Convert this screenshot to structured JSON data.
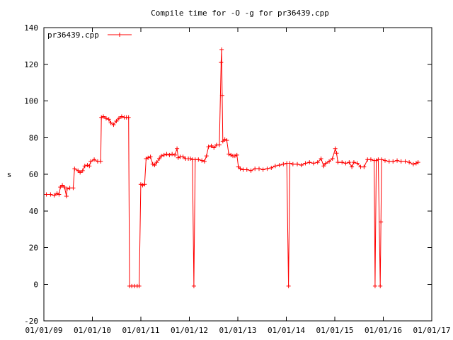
{
  "chart_data": {
    "type": "line",
    "title": "Compile time for -O -g for pr36439.cpp",
    "xlabel": "",
    "ylabel": "s",
    "xlim": [
      "2009-01-01",
      "2017-01-01"
    ],
    "ylim": [
      -20,
      140
    ],
    "yticks": [
      -20,
      0,
      20,
      40,
      60,
      80,
      100,
      120,
      140
    ],
    "xticks": [
      "01/01/09",
      "01/01/10",
      "01/01/11",
      "01/01/12",
      "01/01/13",
      "01/01/14",
      "01/01/15",
      "01/01/16",
      "01/01/17"
    ],
    "grid": false,
    "legend_position": "top-left",
    "series_color": "#ff0000",
    "series": [
      {
        "name": "pr36439.cpp",
        "points": [
          [
            "2009-01-20",
            49
          ],
          [
            "2009-02-20",
            49
          ],
          [
            "2009-03-20",
            48.5
          ],
          [
            "2009-04-10",
            49.5
          ],
          [
            "2009-04-25",
            49
          ],
          [
            "2009-05-05",
            53
          ],
          [
            "2009-05-20",
            54
          ],
          [
            "2009-06-05",
            53
          ],
          [
            "2009-06-20",
            48
          ],
          [
            "2009-06-25",
            52
          ],
          [
            "2009-07-15",
            52.5
          ],
          [
            "2009-08-10",
            52.5
          ],
          [
            "2009-08-20",
            63
          ],
          [
            "2009-09-15",
            62
          ],
          [
            "2009-10-01",
            61
          ],
          [
            "2009-10-20",
            62
          ],
          [
            "2009-11-05",
            64.5
          ],
          [
            "2009-11-25",
            65
          ],
          [
            "2009-12-10",
            64.5
          ],
          [
            "2009-12-20",
            67
          ],
          [
            "2010-01-15",
            68
          ],
          [
            "2010-02-10",
            67
          ],
          [
            "2010-03-05",
            67
          ],
          [
            "2010-03-10",
            91
          ],
          [
            "2010-03-25",
            91.5
          ],
          [
            "2010-04-15",
            90.5
          ],
          [
            "2010-05-05",
            90
          ],
          [
            "2010-05-20",
            88
          ],
          [
            "2010-06-10",
            87
          ],
          [
            "2010-07-01",
            89
          ],
          [
            "2010-07-20",
            90.5
          ],
          [
            "2010-08-10",
            91.5
          ],
          [
            "2010-08-30",
            91
          ],
          [
            "2010-09-15",
            91
          ],
          [
            "2010-10-01",
            91
          ],
          [
            "2010-10-08",
            -1
          ],
          [
            "2010-10-25",
            -1
          ],
          [
            "2010-11-15",
            -1
          ],
          [
            "2010-12-05",
            -1
          ],
          [
            "2010-12-20",
            -1
          ],
          [
            "2011-01-01",
            54.5
          ],
          [
            "2011-01-15",
            54
          ],
          [
            "2011-01-30",
            54.5
          ],
          [
            "2011-02-10",
            68.5
          ],
          [
            "2011-02-25",
            69
          ],
          [
            "2011-03-15",
            69.5
          ],
          [
            "2011-04-01",
            65.5
          ],
          [
            "2011-04-15",
            65
          ],
          [
            "2011-05-01",
            66.5
          ],
          [
            "2011-05-20",
            68.5
          ],
          [
            "2011-06-05",
            70
          ],
          [
            "2011-06-25",
            70.5
          ],
          [
            "2011-07-15",
            71
          ],
          [
            "2011-08-05",
            70.5
          ],
          [
            "2011-08-25",
            71
          ],
          [
            "2011-09-15",
            70.5
          ],
          [
            "2011-10-01",
            74
          ],
          [
            "2011-10-10",
            69
          ],
          [
            "2011-10-25",
            69.5
          ],
          [
            "2011-11-15",
            69.5
          ],
          [
            "2011-12-05",
            68.5
          ],
          [
            "2011-12-25",
            68.5
          ],
          [
            "2012-01-10",
            68.5
          ],
          [
            "2012-01-25",
            68
          ],
          [
            "2012-02-05",
            -1
          ],
          [
            "2012-02-15",
            68
          ],
          [
            "2012-03-10",
            68
          ],
          [
            "2012-04-05",
            67.5
          ],
          [
            "2012-04-25",
            67
          ],
          [
            "2012-05-10",
            70
          ],
          [
            "2012-05-25",
            75
          ],
          [
            "2012-06-15",
            75.5
          ],
          [
            "2012-07-05",
            74.5
          ],
          [
            "2012-07-25",
            76
          ],
          [
            "2012-08-15",
            76
          ],
          [
            "2012-08-28",
            121
          ],
          [
            "2012-09-01",
            128
          ],
          [
            "2012-09-05",
            103
          ],
          [
            "2012-09-10",
            78
          ],
          [
            "2012-09-25",
            79
          ],
          [
            "2012-10-10",
            78.5
          ],
          [
            "2012-10-25",
            71
          ],
          [
            "2012-11-10",
            70.5
          ],
          [
            "2012-11-25",
            70
          ],
          [
            "2012-12-10",
            70
          ],
          [
            "2012-12-25",
            70.5
          ],
          [
            "2013-01-05",
            64
          ],
          [
            "2013-01-20",
            63
          ],
          [
            "2013-02-10",
            62.5
          ],
          [
            "2013-03-10",
            62.5
          ],
          [
            "2013-04-10",
            62
          ],
          [
            "2013-05-10",
            63
          ],
          [
            "2013-06-10",
            63
          ],
          [
            "2013-07-10",
            62.5
          ],
          [
            "2013-08-10",
            63
          ],
          [
            "2013-09-10",
            63.5
          ],
          [
            "2013-10-10",
            64.5
          ],
          [
            "2013-11-10",
            65
          ],
          [
            "2013-12-10",
            65.5
          ],
          [
            "2014-01-05",
            66
          ],
          [
            "2014-01-18",
            -1
          ],
          [
            "2014-01-28",
            66
          ],
          [
            "2014-02-20",
            65.5
          ],
          [
            "2014-03-25",
            65.5
          ],
          [
            "2014-04-25",
            65
          ],
          [
            "2014-05-25",
            66
          ],
          [
            "2014-06-25",
            66.5
          ],
          [
            "2014-07-25",
            66
          ],
          [
            "2014-08-25",
            66.5
          ],
          [
            "2014-09-20",
            68.5
          ],
          [
            "2014-10-10",
            64.5
          ],
          [
            "2014-10-25",
            66
          ],
          [
            "2014-11-20",
            67
          ],
          [
            "2014-12-15",
            68.5
          ],
          [
            "2015-01-05",
            74
          ],
          [
            "2015-01-15",
            71.5
          ],
          [
            "2015-01-25",
            66.5
          ],
          [
            "2015-02-25",
            66.5
          ],
          [
            "2015-03-25",
            66
          ],
          [
            "2015-04-20",
            66.5
          ],
          [
            "2015-05-10",
            64
          ],
          [
            "2015-05-25",
            66.5
          ],
          [
            "2015-06-20",
            66
          ],
          [
            "2015-07-15",
            64
          ],
          [
            "2015-08-10",
            64
          ],
          [
            "2015-09-05",
            68
          ],
          [
            "2015-09-30",
            68
          ],
          [
            "2015-10-25",
            67.5
          ],
          [
            "2015-11-01",
            -1
          ],
          [
            "2015-11-10",
            67.5
          ],
          [
            "2015-11-25",
            68
          ],
          [
            "2015-12-10",
            -1
          ],
          [
            "2015-12-15",
            34
          ],
          [
            "2015-12-20",
            68
          ],
          [
            "2016-01-15",
            67.5
          ],
          [
            "2016-02-15",
            67
          ],
          [
            "2016-03-15",
            67
          ],
          [
            "2016-04-15",
            67.5
          ],
          [
            "2016-05-15",
            67
          ],
          [
            "2016-06-15",
            67
          ],
          [
            "2016-07-15",
            66.5
          ],
          [
            "2016-08-15",
            65.5
          ],
          [
            "2016-09-05",
            66
          ],
          [
            "2016-09-20",
            66.5
          ]
        ]
      }
    ]
  }
}
